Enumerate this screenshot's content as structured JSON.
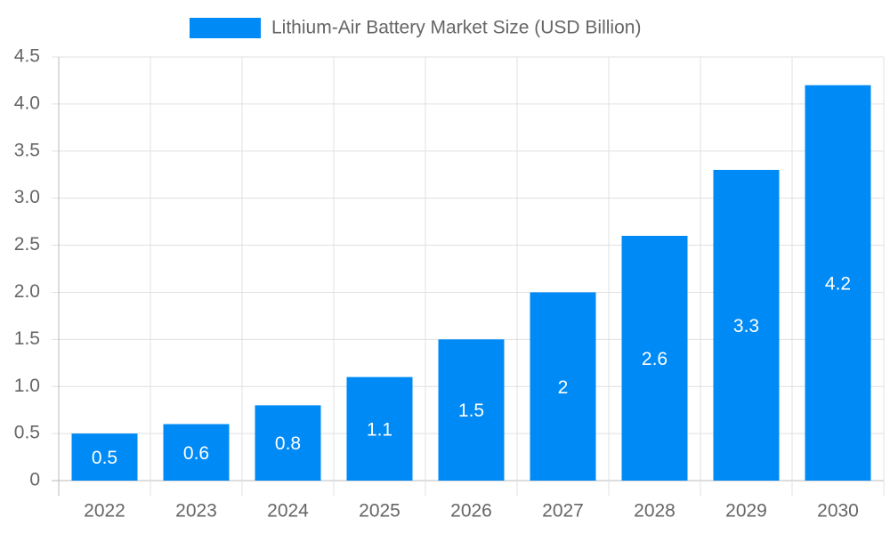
{
  "chart_data": {
    "type": "bar",
    "categories": [
      "2022",
      "2023",
      "2024",
      "2025",
      "2026",
      "2027",
      "2028",
      "2029",
      "2030"
    ],
    "series": [
      {
        "name": "Lithium-Air Battery Market Size (USD Billion)",
        "color": "#008af5",
        "values": [
          0.5,
          0.6,
          0.8,
          1.1,
          1.5,
          2,
          2.6,
          3.3,
          4.2
        ]
      }
    ],
    "ylim": [
      0,
      4.5
    ],
    "yticks": [
      0,
      0.5,
      {
        "value": 1,
        "label": "1.0"
      },
      1.5,
      {
        "value": 2,
        "label": "2.0"
      },
      2.5,
      {
        "value": 3,
        "label": "3.0"
      },
      3.5,
      {
        "value": 4,
        "label": "4.0"
      },
      4.5
    ],
    "grid": true,
    "legend": "top"
  }
}
